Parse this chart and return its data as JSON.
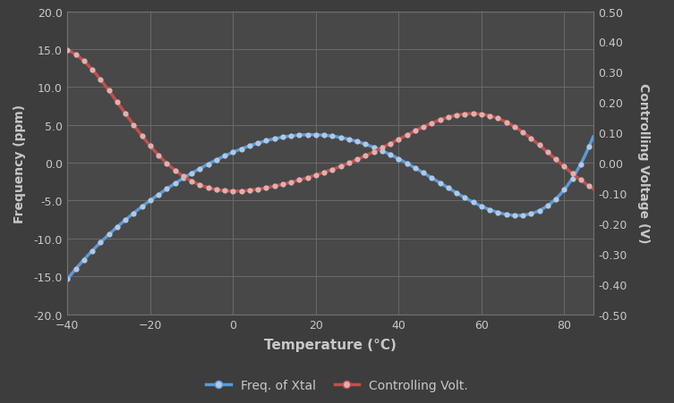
{
  "background_color": "#3d3d3d",
  "plot_bg_color": "#484848",
  "grid_color": "#707070",
  "xlabel": "Temperature (°C)",
  "ylabel_left": "Frequency (ppm)",
  "ylabel_right": "Controlling Voltage (V)",
  "xlim": [
    -40,
    87
  ],
  "ylim_left": [
    -20.0,
    20.0
  ],
  "ylim_right": [
    -0.5,
    0.5
  ],
  "xticks": [
    -40,
    -20,
    0,
    20,
    40,
    60,
    80
  ],
  "yticks_left": [
    -20.0,
    -15.0,
    -10.0,
    -5.0,
    0.0,
    5.0,
    10.0,
    15.0,
    20.0
  ],
  "yticks_right": [
    -0.5,
    -0.4,
    -0.3,
    -0.2,
    -0.1,
    0.0,
    0.1,
    0.2,
    0.3,
    0.4,
    0.5
  ],
  "blue_line_color": "#5b9bd5",
  "blue_marker_color": "#b0c8e8",
  "red_line_color": "#c0504d",
  "red_marker_color": "#e0b0b0",
  "legend_blue_label": "Freq. of Xtal",
  "legend_red_label": "Controlling Volt.",
  "text_color": "#c8c8c8",
  "axis_label_color": "#c8c8c8",
  "tick_color": "#c8c8c8",
  "blue_t_pts": [
    -40,
    -30,
    -20,
    -10,
    0,
    10,
    20,
    30,
    40,
    50,
    60,
    70,
    80,
    85
  ],
  "blue_f_pts": [
    -15.0,
    -10.5,
    -4.5,
    -1.0,
    1.5,
    3.0,
    3.5,
    2.5,
    0.5,
    -2.5,
    -5.5,
    -6.2,
    -5.5,
    2.0
  ],
  "red_t_pts": [
    -40,
    -37,
    -33,
    -28,
    -22,
    -18,
    -12,
    -5,
    0,
    8,
    15,
    22,
    30,
    40,
    50,
    58,
    63,
    70,
    77,
    83,
    87
  ],
  "red_v_pts": [
    0.375,
    0.34,
    0.29,
    0.21,
    0.09,
    0.02,
    -0.05,
    -0.085,
    -0.09,
    -0.075,
    -0.065,
    -0.04,
    0.01,
    0.09,
    0.135,
    0.155,
    0.158,
    0.1,
    0.025,
    -0.05,
    -0.085
  ]
}
